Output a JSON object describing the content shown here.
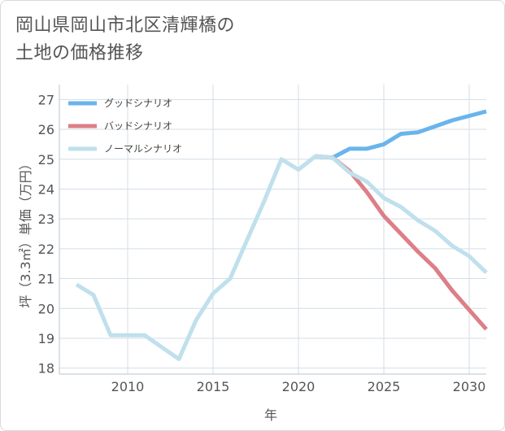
{
  "title": {
    "line1": "岡山県岡山市北区清輝橋の",
    "line2": "土地の価格推移"
  },
  "chart_data": {
    "type": "line",
    "xlabel": "年",
    "ylabel": "坪（3.3㎡）単価（万円）",
    "xlim": [
      2006,
      2031
    ],
    "ylim": [
      17.8,
      27.5
    ],
    "x_ticks": [
      2010,
      2015,
      2020,
      2025,
      2030
    ],
    "y_ticks": [
      18,
      19,
      20,
      21,
      22,
      23,
      24,
      25,
      26,
      27
    ],
    "grid": true,
    "legend_position": "top-left",
    "series": [
      {
        "name": "グッドシナリオ",
        "color": "#6ab4ec",
        "points": [
          [
            2021,
            25.1
          ],
          [
            2022,
            25.05
          ],
          [
            2023,
            25.35
          ],
          [
            2024,
            25.35
          ],
          [
            2025,
            25.5
          ],
          [
            2026,
            25.85
          ],
          [
            2027,
            25.9
          ],
          [
            2028,
            26.1
          ],
          [
            2029,
            26.3
          ],
          [
            2030,
            26.45
          ],
          [
            2031,
            26.6
          ]
        ]
      },
      {
        "name": "バッドシナリオ",
        "color": "#dc7f86",
        "points": [
          [
            2021,
            25.1
          ],
          [
            2022,
            25.05
          ],
          [
            2023,
            24.6
          ],
          [
            2024,
            23.9
          ],
          [
            2025,
            23.1
          ],
          [
            2026,
            22.5
          ],
          [
            2027,
            21.9
          ],
          [
            2028,
            21.35
          ],
          [
            2029,
            20.6
          ],
          [
            2030,
            19.95
          ],
          [
            2031,
            19.3
          ]
        ]
      },
      {
        "name": "ノーマルシナリオ",
        "color": "#bfe0ec",
        "points": [
          [
            2007,
            20.8
          ],
          [
            2008,
            20.45
          ],
          [
            2009,
            19.1
          ],
          [
            2010,
            19.1
          ],
          [
            2011,
            19.1
          ],
          [
            2012,
            18.7
          ],
          [
            2013,
            18.3
          ],
          [
            2014,
            19.6
          ],
          [
            2015,
            20.5
          ],
          [
            2016,
            21.0
          ],
          [
            2017,
            22.3
          ],
          [
            2018,
            23.6
          ],
          [
            2019,
            25.0
          ],
          [
            2020,
            24.65
          ],
          [
            2021,
            25.1
          ],
          [
            2022,
            25.05
          ],
          [
            2023,
            24.55
          ],
          [
            2024,
            24.25
          ],
          [
            2025,
            23.7
          ],
          [
            2026,
            23.4
          ],
          [
            2027,
            22.95
          ],
          [
            2028,
            22.6
          ],
          [
            2029,
            22.1
          ],
          [
            2030,
            21.75
          ],
          [
            2031,
            21.2
          ]
        ]
      }
    ]
  }
}
